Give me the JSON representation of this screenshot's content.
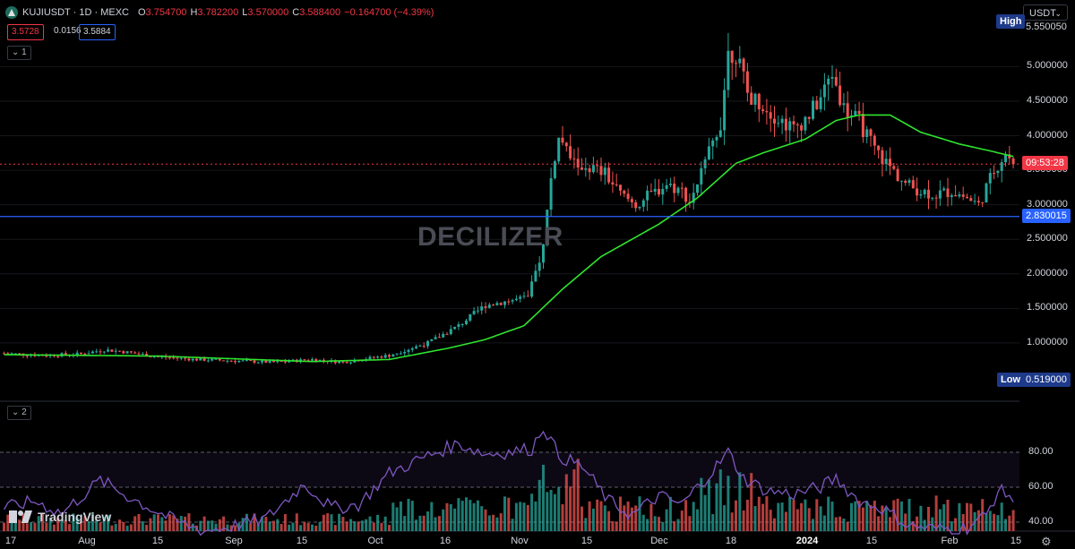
{
  "legend": {
    "symbol": "KUJIUSDT · 1D · MEXC",
    "open_key": "O",
    "open": "3.754700",
    "high_key": "H",
    "high": "3.782200",
    "low_key": "L",
    "low": "3.570000",
    "close_key": "C",
    "close": "3.588400",
    "change": "−0.164700 (−4.39%)"
  },
  "order": {
    "sell": "3.5728",
    "spread": "0.0156",
    "buy": "3.5884"
  },
  "pane1_collapse": "1",
  "pane2_collapse": "2",
  "currency": "USDT",
  "currency_chevron": "⌄",
  "watermark": "DECILIZER",
  "tv_logo": "TradingView",
  "settings_icon": "gear-icon",
  "colors": {
    "up": "#26a69a",
    "down": "#ef5350",
    "ma": "#2ee52e",
    "rsi": "#7e57c2",
    "hline": "#2962ff",
    "bg": "#000000"
  },
  "tags": {
    "high_label": "High",
    "high_value": "5.550050",
    "low_label": "Low",
    "low_value": "0.519000",
    "countdown": "09:53:28",
    "hline_value": "2.830015"
  },
  "price_axis": [
    "5.000000",
    "4.500000",
    "4.000000",
    "3.500000",
    "3.000000",
    "2.500000",
    "2.000000",
    "1.500000",
    "1.000000"
  ],
  "rsi_axis": [
    "80.00",
    "60.00",
    "40.00"
  ],
  "time_axis": [
    "17",
    "Aug",
    "15",
    "Sep",
    "15",
    "Oct",
    "16",
    "Nov",
    "15",
    "Dec",
    "18",
    "2024",
    "15",
    "Feb",
    "15"
  ],
  "chart_data": {
    "type": "candlestick",
    "symbol": "KUJIUSDT",
    "interval": "1D",
    "exchange": "MEXC",
    "ylim": [
      0.45,
      5.75
    ],
    "horizontal_line": 2.830015,
    "last_close": 3.5884,
    "anchors": [
      [
        0,
        0.85
      ],
      [
        10,
        0.82
      ],
      [
        20,
        0.84
      ],
      [
        26,
        0.9
      ],
      [
        30,
        0.88
      ],
      [
        40,
        0.8
      ],
      [
        50,
        0.76
      ],
      [
        60,
        0.74
      ],
      [
        70,
        0.72
      ],
      [
        80,
        0.76
      ],
      [
        88,
        0.72
      ],
      [
        95,
        0.78
      ],
      [
        100,
        0.82
      ],
      [
        110,
        1.0
      ],
      [
        118,
        1.25
      ],
      [
        125,
        1.55
      ],
      [
        130,
        1.6
      ],
      [
        136,
        1.65
      ],
      [
        140,
        2.4
      ],
      [
        142,
        3.4
      ],
      [
        144,
        3.95
      ],
      [
        148,
        3.6
      ],
      [
        152,
        3.55
      ],
      [
        156,
        3.45
      ],
      [
        160,
        3.15
      ],
      [
        164,
        3.0
      ],
      [
        168,
        3.15
      ],
      [
        172,
        3.3
      ],
      [
        176,
        3.2
      ],
      [
        178,
        3.05
      ],
      [
        182,
        3.6
      ],
      [
        186,
        4.2
      ],
      [
        188,
        5.2
      ],
      [
        190,
        5.2
      ],
      [
        193,
        4.6
      ],
      [
        197,
        4.45
      ],
      [
        201,
        4.25
      ],
      [
        205,
        4.1
      ],
      [
        209,
        4.3
      ],
      [
        212,
        4.55
      ],
      [
        215,
        4.9
      ],
      [
        218,
        4.4
      ],
      [
        222,
        4.2
      ],
      [
        226,
        3.8
      ],
      [
        230,
        3.55
      ],
      [
        234,
        3.3
      ],
      [
        238,
        3.2
      ],
      [
        242,
        3.15
      ],
      [
        246,
        3.2
      ],
      [
        250,
        3.1
      ],
      [
        253,
        3.0
      ],
      [
        257,
        3.5
      ],
      [
        260,
        3.75
      ],
      [
        262,
        3.6
      ]
    ],
    "ma_anchors": [
      [
        0,
        0.83
      ],
      [
        40,
        0.81
      ],
      [
        80,
        0.73
      ],
      [
        100,
        0.76
      ],
      [
        115,
        0.92
      ],
      [
        125,
        1.05
      ],
      [
        135,
        1.25
      ],
      [
        145,
        1.78
      ],
      [
        155,
        2.25
      ],
      [
        170,
        2.72
      ],
      [
        180,
        3.1
      ],
      [
        190,
        3.6
      ],
      [
        197,
        3.75
      ],
      [
        208,
        3.95
      ],
      [
        216,
        4.22
      ],
      [
        222,
        4.3
      ],
      [
        230,
        4.3
      ],
      [
        238,
        4.05
      ],
      [
        248,
        3.88
      ],
      [
        256,
        3.78
      ],
      [
        262,
        3.7
      ]
    ],
    "rsi_anchors": [
      [
        0,
        48
      ],
      [
        8,
        52
      ],
      [
        15,
        45
      ],
      [
        25,
        64
      ],
      [
        32,
        55
      ],
      [
        38,
        48
      ],
      [
        45,
        40
      ],
      [
        52,
        35
      ],
      [
        60,
        38
      ],
      [
        68,
        42
      ],
      [
        78,
        62
      ],
      [
        85,
        48
      ],
      [
        92,
        50
      ],
      [
        100,
        68
      ],
      [
        110,
        78
      ],
      [
        118,
        85
      ],
      [
        125,
        79
      ],
      [
        130,
        80
      ],
      [
        137,
        82
      ],
      [
        140,
        95
      ],
      [
        144,
        78
      ],
      [
        150,
        72
      ],
      [
        157,
        52
      ],
      [
        163,
        44
      ],
      [
        170,
        55
      ],
      [
        176,
        50
      ],
      [
        180,
        60
      ],
      [
        185,
        72
      ],
      [
        188,
        80
      ],
      [
        192,
        65
      ],
      [
        198,
        58
      ],
      [
        205,
        56
      ],
      [
        212,
        60
      ],
      [
        216,
        65
      ],
      [
        222,
        52
      ],
      [
        228,
        48
      ],
      [
        235,
        38
      ],
      [
        242,
        36
      ],
      [
        250,
        37
      ],
      [
        255,
        44
      ],
      [
        258,
        58
      ],
      [
        261,
        56
      ],
      [
        262,
        52
      ]
    ]
  }
}
